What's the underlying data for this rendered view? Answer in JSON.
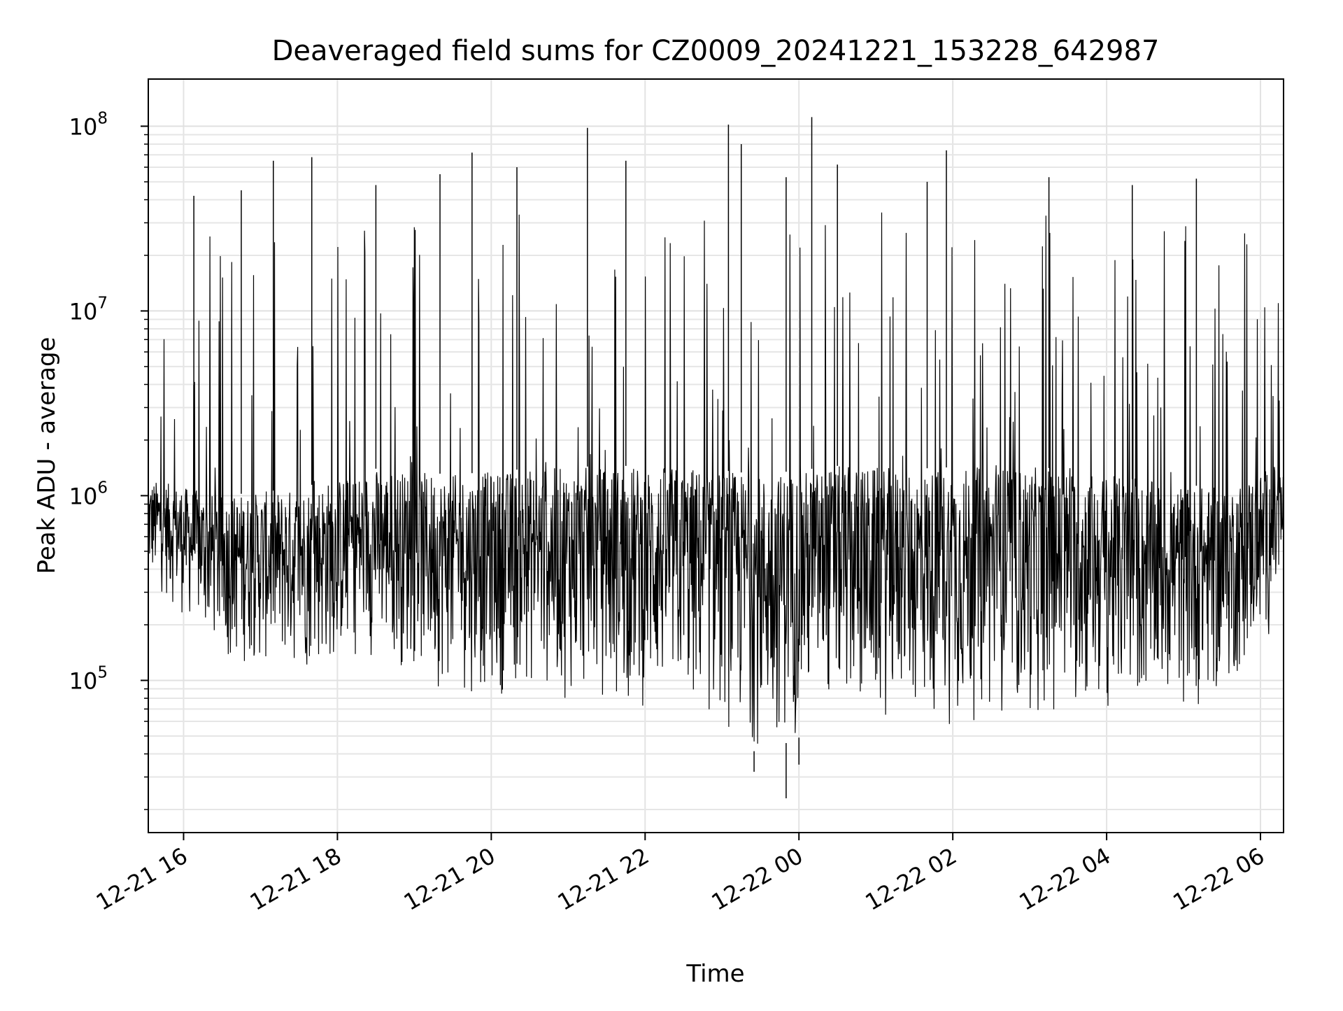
{
  "chart_data": {
    "type": "line",
    "title": "Deaveraged field sums for CZ0009_20241221_153228_642987",
    "xlabel": "Time",
    "ylabel": "Peak ADU - average",
    "x_scale": "time",
    "y_scale": "log",
    "xlim": [
      "2024-12-21T15:32:28",
      "2024-12-22T06:18:00"
    ],
    "ylim": [
      15000,
      180000000
    ],
    "grid": true,
    "x_ticks": [
      "12-21 16",
      "12-21 18",
      "12-21 20",
      "12-21 22",
      "12-22 00",
      "12-22 02",
      "12-22 04",
      "12-22 06"
    ],
    "x_tick_values": [
      "2024-12-21T16:00:00",
      "2024-12-21T18:00:00",
      "2024-12-21T20:00:00",
      "2024-12-21T22:00:00",
      "2024-12-22T00:00:00",
      "2024-12-22T02:00:00",
      "2024-12-22T04:00:00",
      "2024-12-22T06:00:00"
    ],
    "y_ticks": [
      {
        "base": "10",
        "exp": "5",
        "value": 100000
      },
      {
        "base": "10",
        "exp": "6",
        "value": 1000000
      },
      {
        "base": "10",
        "exp": "7",
        "value": 10000000
      },
      {
        "base": "10",
        "exp": "8",
        "value": 100000000
      }
    ],
    "series": [
      {
        "color": "#000000",
        "baseline_envelope": [
          {
            "x": "2024-12-21T15:40:00",
            "low": 300000,
            "high": 1200000
          },
          {
            "x": "2024-12-21T16:30:00",
            "low": 120000,
            "high": 1000000
          },
          {
            "x": "2024-12-21T17:30:00",
            "low": 100000,
            "high": 1100000
          },
          {
            "x": "2024-12-21T18:30:00",
            "low": 130000,
            "high": 1400000
          },
          {
            "x": "2024-12-21T19:30:00",
            "low": 80000,
            "high": 1300000
          },
          {
            "x": "2024-12-21T20:30:00",
            "low": 80000,
            "high": 1400000
          },
          {
            "x": "2024-12-21T21:30:00",
            "low": 70000,
            "high": 1450000
          },
          {
            "x": "2024-12-21T22:30:00",
            "low": 60000,
            "high": 1450000
          },
          {
            "x": "2024-12-21T23:30:00",
            "low": 40000,
            "high": 1300000
          },
          {
            "x": "2024-12-22T00:30:00",
            "low": 60000,
            "high": 1450000
          },
          {
            "x": "2024-12-22T01:30:00",
            "low": 55000,
            "high": 1400000
          },
          {
            "x": "2024-12-22T02:30:00",
            "low": 55000,
            "high": 1450000
          },
          {
            "x": "2024-12-22T03:30:00",
            "low": 60000,
            "high": 1400000
          },
          {
            "x": "2024-12-22T04:30:00",
            "low": 60000,
            "high": 1200000
          },
          {
            "x": "2024-12-22T05:30:00",
            "low": 70000,
            "high": 1100000
          },
          {
            "x": "2024-12-22T06:15:00",
            "low": 200000,
            "high": 1500000
          }
        ],
        "notable_spikes": [
          {
            "x": "2024-12-21T16:08:00",
            "y": 42000000
          },
          {
            "x": "2024-12-21T16:45:00",
            "y": 45000000
          },
          {
            "x": "2024-12-21T17:10:00",
            "y": 65000000
          },
          {
            "x": "2024-12-21T17:40:00",
            "y": 68000000
          },
          {
            "x": "2024-12-21T18:30:00",
            "y": 48000000
          },
          {
            "x": "2024-12-21T19:20:00",
            "y": 55000000
          },
          {
            "x": "2024-12-21T19:45:00",
            "y": 72000000
          },
          {
            "x": "2024-12-21T20:20:00",
            "y": 60000000
          },
          {
            "x": "2024-12-21T21:15:00",
            "y": 98000000
          },
          {
            "x": "2024-12-21T21:45:00",
            "y": 65000000
          },
          {
            "x": "2024-12-21T23:05:00",
            "y": 102000000
          },
          {
            "x": "2024-12-21T23:15:00",
            "y": 80000000
          },
          {
            "x": "2024-12-21T23:50:00",
            "y": 53000000
          },
          {
            "x": "2024-12-22T00:10:00",
            "y": 112000000
          },
          {
            "x": "2024-12-22T00:30:00",
            "y": 62000000
          },
          {
            "x": "2024-12-22T01:40:00",
            "y": 50000000
          },
          {
            "x": "2024-12-22T01:55:00",
            "y": 74000000
          },
          {
            "x": "2024-12-22T03:15:00",
            "y": 53000000
          },
          {
            "x": "2024-12-22T04:20:00",
            "y": 48000000
          },
          {
            "x": "2024-12-22T05:10:00",
            "y": 52000000
          }
        ],
        "notable_dips": [
          {
            "x": "2024-12-21T23:50:00",
            "y": 23000.0
          },
          {
            "x": "2024-12-21T23:25:00",
            "y": 32000
          },
          {
            "x": "2024-12-22T00:00:00",
            "y": 35000
          }
        ]
      }
    ]
  }
}
